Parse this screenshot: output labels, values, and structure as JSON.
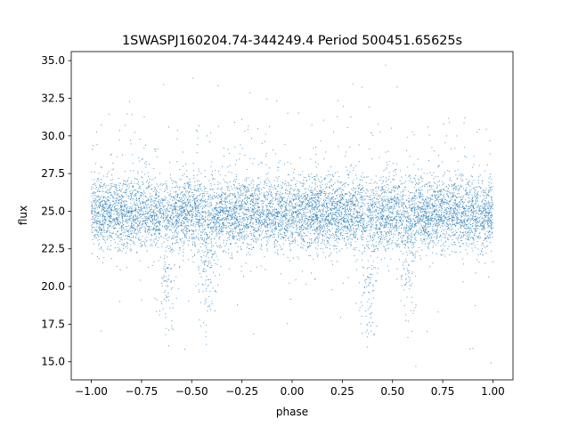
{
  "chart_data": {
    "type": "scatter",
    "title": "1SWASPJ160204.74-344249.4 Period 500451.65625s",
    "xlabel": "phase",
    "ylabel": "flux",
    "xlim": [
      -1.1,
      1.1
    ],
    "ylim": [
      13.8,
      35.6
    ],
    "xticks": [
      -1.0,
      -0.75,
      -0.5,
      -0.25,
      0.0,
      0.25,
      0.5,
      0.75,
      1.0
    ],
    "xtick_labels": [
      "−1.00",
      "−0.75",
      "−0.50",
      "−0.25",
      "0.00",
      "0.25",
      "0.50",
      "0.75",
      "1.00"
    ],
    "yticks": [
      15.0,
      17.5,
      20.0,
      22.5,
      25.0,
      27.5,
      30.0,
      32.5,
      35.0
    ],
    "ytick_labels": [
      "15.0",
      "17.5",
      "20.0",
      "22.5",
      "25.0",
      "27.5",
      "30.0",
      "32.5",
      "35.0"
    ],
    "grid": false,
    "point_color": "#1f77b4",
    "series": [
      {
        "phase_range": [
          -1.0,
          1.0
        ],
        "typical_flux": 24.8,
        "core_flux_range": [
          22.5,
          27.5
        ],
        "min_flux": 14.7,
        "max_flux": 34.7,
        "dips": [
          {
            "phase": -0.62,
            "min_flux": 17.5
          },
          {
            "phase": -0.42,
            "min_flux": 18.5
          },
          {
            "phase": 0.38,
            "min_flux": 17.5
          },
          {
            "phase": 0.58,
            "min_flux": 18.5
          }
        ]
      }
    ]
  }
}
